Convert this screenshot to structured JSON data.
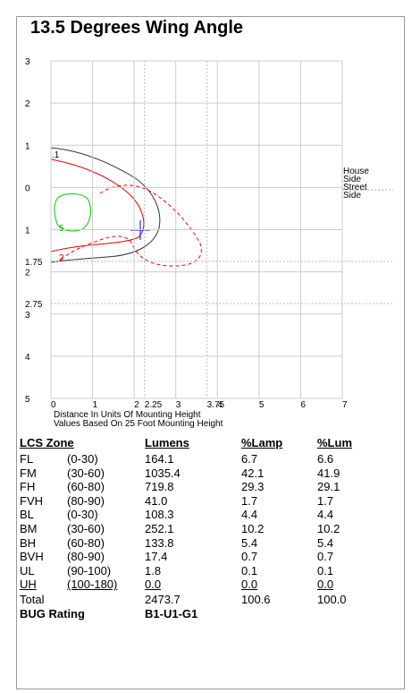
{
  "title": "13.5 Degrees Wing Angle",
  "plot": {
    "xticks": [
      0,
      1,
      2,
      2.25,
      3,
      3.75,
      4,
      5,
      6,
      7
    ],
    "yticks": [
      3,
      2,
      1,
      0,
      {
        "value": -1,
        "label": "1"
      },
      {
        "value": -1.75,
        "label": "1.75"
      },
      {
        "value": -2,
        "label": "2"
      },
      {
        "value": -2.75,
        "label": "2.75"
      },
      {
        "value": -3,
        "label": "3"
      },
      {
        "value": -4,
        "label": "4"
      },
      {
        "value": -5,
        "label": "5"
      }
    ],
    "xlim": [
      0,
      7
    ],
    "ylim": [
      -5,
      3
    ],
    "note1": "Distance In Units Of Mounting Height",
    "note2": "Values Based On 25 Foot Mounting Height",
    "house": "House Side",
    "street": "Street Side",
    "contour_labels": [
      ".1",
      "5",
      "2"
    ]
  },
  "table": {
    "header": [
      "LCS Zone",
      "Lumens",
      "%Lamp",
      "%Lum"
    ],
    "rows": [
      [
        "FL",
        "(0-30)",
        "164.1",
        "6.7",
        "6.6"
      ],
      [
        "FM",
        "(30-60)",
        "1035.4",
        "42.1",
        "41.9"
      ],
      [
        "FH",
        "(60-80)",
        "719.8",
        "29.3",
        "29.1"
      ],
      [
        "FVH",
        "(80-90)",
        "41.0",
        "1.7",
        "1.7"
      ],
      [
        "BL",
        "(0-30)",
        "108.3",
        "4.4",
        "4.4"
      ],
      [
        "BM",
        "(30-60)",
        "252.1",
        "10.2",
        "10.2"
      ],
      [
        "BH",
        "(60-80)",
        "133.8",
        "5.4",
        "5.4"
      ],
      [
        "BVH",
        "(80-90)",
        "17.4",
        "0.7",
        "0.7"
      ],
      [
        "UL",
        "(90-100)",
        "1.8",
        "0.1",
        "0.1"
      ],
      [
        "UH",
        "(100-180)",
        "0.0",
        "0.0",
        "0.0"
      ]
    ],
    "total": [
      "Total",
      "2473.7",
      "100.6",
      "100.0"
    ],
    "bug": [
      "BUG Rating",
      "B1-U1-G1"
    ]
  }
}
